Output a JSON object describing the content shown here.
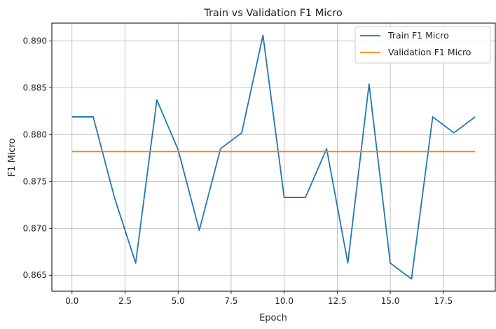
{
  "chart_data": {
    "type": "line",
    "title": "Train vs Validation F1 Micro",
    "xlabel": "Epoch",
    "ylabel": "F1 Micro",
    "xlim": [
      -0.95,
      19.95
    ],
    "ylim": [
      0.8633,
      0.8919
    ],
    "xticks": [
      0.0,
      2.5,
      5.0,
      7.5,
      10.0,
      12.5,
      15.0,
      17.5
    ],
    "xtick_labels": [
      "0.0",
      "2.5",
      "5.0",
      "7.5",
      "10.0",
      "12.5",
      "15.0",
      "17.5"
    ],
    "yticks": [
      0.865,
      0.87,
      0.875,
      0.88,
      0.885,
      0.89
    ],
    "ytick_labels": [
      "0.865",
      "0.870",
      "0.875",
      "0.880",
      "0.885",
      "0.890"
    ],
    "grid": true,
    "legend_position": "top-right",
    "x": [
      0,
      1,
      2,
      3,
      4,
      5,
      6,
      7,
      8,
      9,
      10,
      11,
      12,
      13,
      14,
      15,
      16,
      17,
      18,
      19
    ],
    "series": [
      {
        "name": "Train F1 Micro",
        "color": "#1f77b4",
        "values": [
          0.8819,
          0.8819,
          0.8733,
          0.8663,
          0.8837,
          0.8784,
          0.8698,
          0.8785,
          0.8802,
          0.8906,
          0.8733,
          0.8733,
          0.8785,
          0.8663,
          0.8854,
          0.8663,
          0.8646,
          0.8819,
          0.8802,
          0.8819
        ]
      },
      {
        "name": "Validation F1 Micro",
        "color": "#ff7f0e",
        "values": [
          0.8782,
          0.8782,
          0.8782,
          0.8782,
          0.8782,
          0.8782,
          0.8782,
          0.8782,
          0.8782,
          0.8782,
          0.8782,
          0.8782,
          0.8782,
          0.8782,
          0.8782,
          0.8782,
          0.8782,
          0.8782,
          0.8782,
          0.8782
        ]
      }
    ]
  }
}
